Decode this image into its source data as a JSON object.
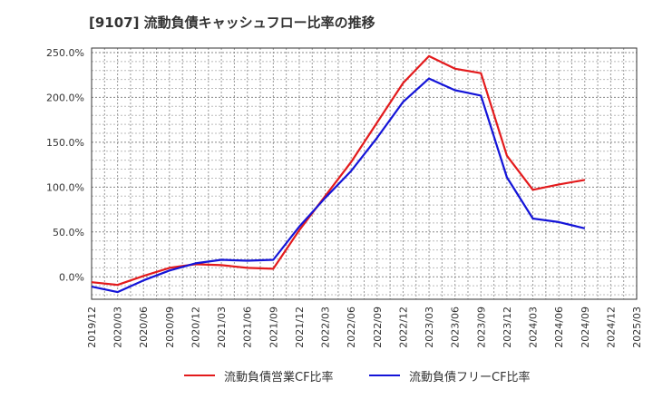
{
  "chart_data": {
    "type": "line",
    "title": "[9107]  流動負債キャッシュフロー比率の推移",
    "xlabel": "",
    "ylabel": "",
    "ylim": [
      -25,
      255
    ],
    "yticks": [
      0,
      50,
      100,
      150,
      200,
      250
    ],
    "ytick_labels": [
      "0.0%",
      "50.0%",
      "100.0%",
      "150.0%",
      "200.0%",
      "250.0%"
    ],
    "categories": [
      "2019/12",
      "2020/03",
      "2020/06",
      "2020/09",
      "2020/12",
      "2021/03",
      "2021/06",
      "2021/09",
      "2021/12",
      "2022/03",
      "2022/06",
      "2022/09",
      "2022/12",
      "2023/03",
      "2023/06",
      "2023/09",
      "2023/12",
      "2024/03",
      "2024/06",
      "2024/09",
      "2024/12",
      "2025/03"
    ],
    "grid": true,
    "legend_position": "bottom",
    "series": [
      {
        "name": "流動負債営業CF比率",
        "color": "#e31a1c",
        "values": [
          -6,
          -9,
          1,
          10,
          14,
          13,
          10,
          9,
          52,
          90,
          128,
          172,
          216,
          246,
          232,
          227,
          135,
          97,
          103,
          108,
          null,
          null
        ]
      },
      {
        "name": "流動負債フリーCF比率",
        "color": "#1414d8",
        "values": [
          -11,
          -17,
          -4,
          7,
          15,
          19,
          18,
          19,
          56,
          88,
          118,
          155,
          195,
          221,
          208,
          202,
          111,
          65,
          61,
          54,
          null,
          null
        ]
      }
    ]
  }
}
